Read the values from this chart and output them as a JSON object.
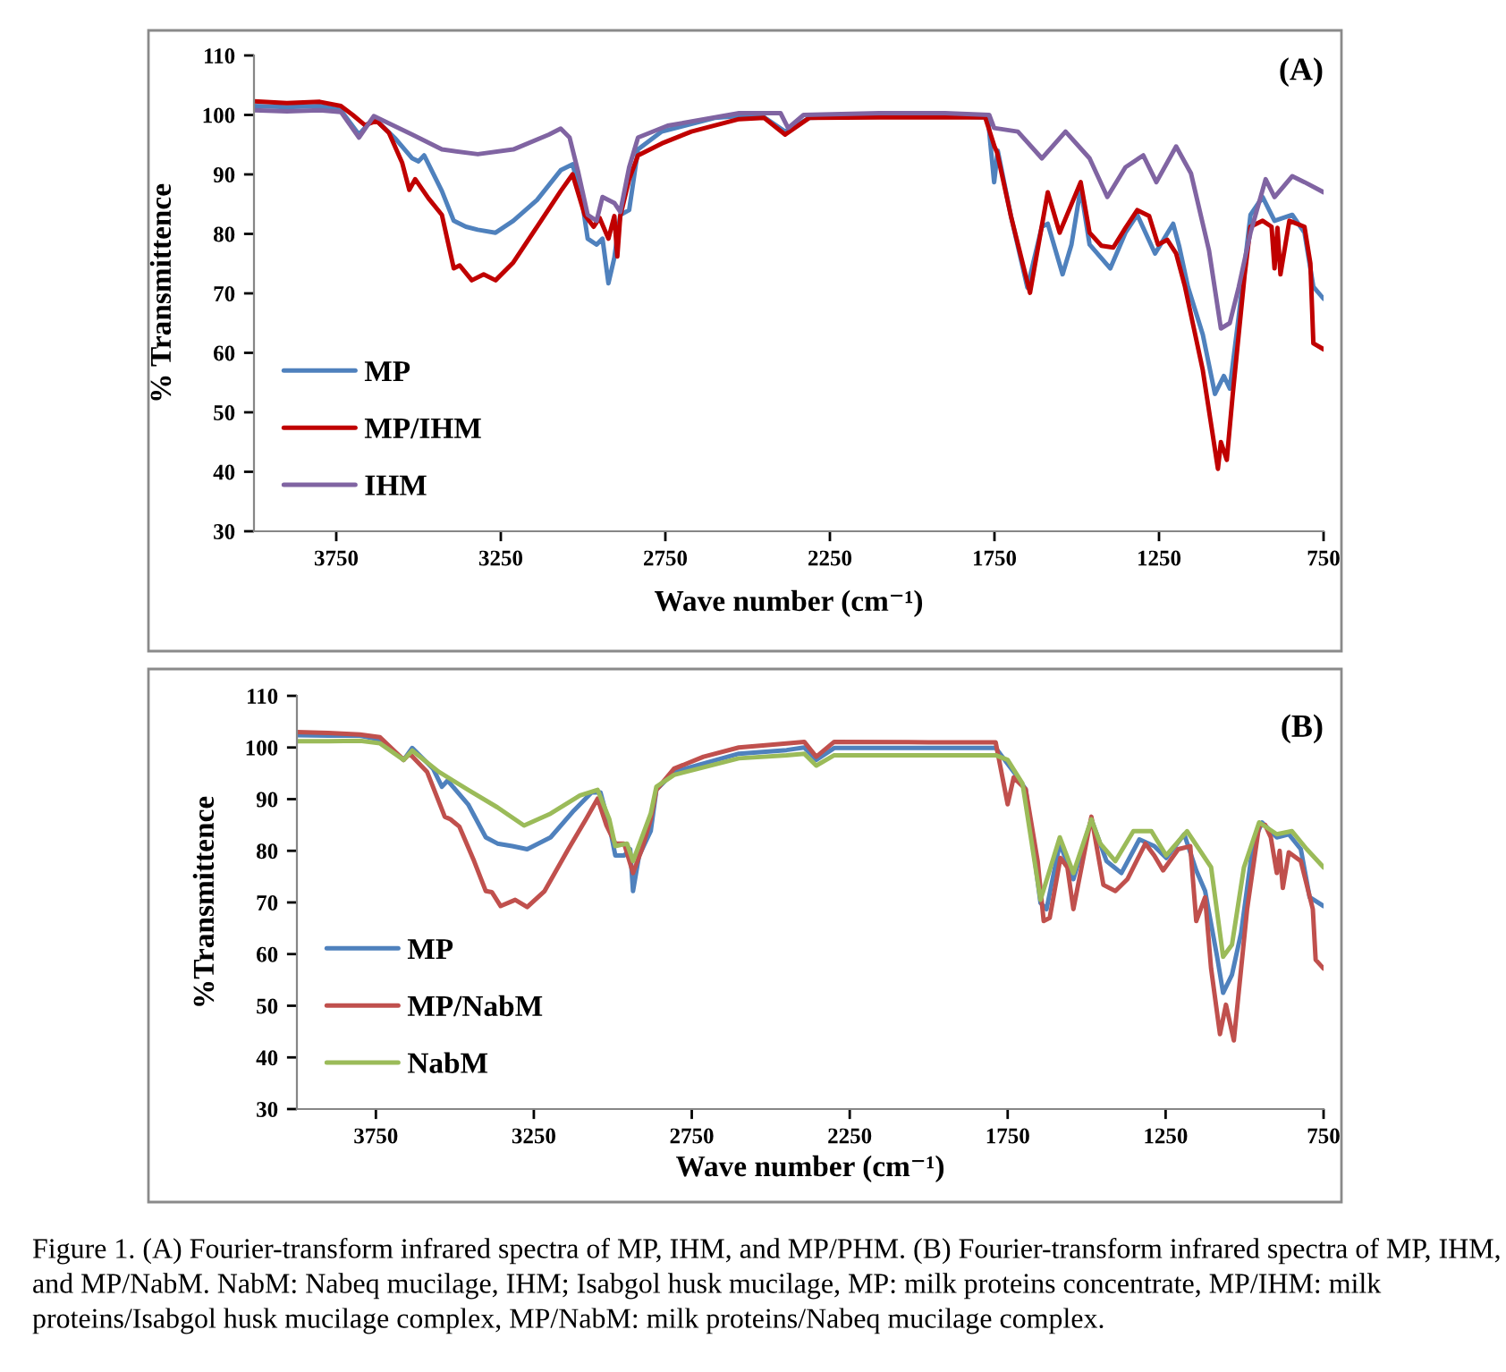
{
  "chart_data": [
    {
      "type": "line",
      "title": "(A)",
      "xlabel": "Wave number (cm⁻¹)",
      "ylabel": "% Transmittence",
      "xlim": [
        4000,
        750
      ],
      "ylim": [
        30,
        110
      ],
      "xticks": [
        3750,
        3250,
        2750,
        2250,
        1750,
        1250,
        750
      ],
      "yticks": [
        30,
        40,
        50,
        60,
        70,
        80,
        90,
        100,
        110
      ],
      "legend": "lower left",
      "series": [
        {
          "name": "MP",
          "color": "#4f81bd",
          "x": [
            4000,
            3900,
            3800,
            3736,
            3681,
            3636,
            3570,
            3519,
            3500,
            3483,
            3429,
            3393,
            3356,
            3320,
            3266,
            3212,
            3140,
            3068,
            3032,
            3005,
            2986,
            2959,
            2941,
            2923,
            2905,
            2887,
            2860,
            2833,
            2761,
            2600,
            2526,
            2450,
            2386,
            2313,
            2100,
            1900,
            1770,
            1751,
            1740,
            1700,
            1650,
            1606,
            1588,
            1543,
            1516,
            1488,
            1461,
            1398,
            1352,
            1316,
            1262,
            1207,
            1189,
            1162,
            1117,
            1080,
            1053,
            1035,
            1008,
            972,
            935,
            899,
            845,
            808,
            781,
            750
          ],
          "values": [
            101.5,
            101.3,
            101.5,
            100.8,
            96.7,
            99.5,
            96.0,
            92.7,
            92.2,
            93.2,
            87.2,
            82.2,
            81.2,
            80.7,
            80.2,
            82.2,
            85.7,
            90.7,
            91.7,
            86.2,
            79.2,
            78.2,
            79.2,
            71.7,
            76.0,
            83.2,
            84.0,
            94.2,
            97.2,
            99.5,
            99.8,
            99.6,
            97.2,
            99.5,
            99.8,
            99.8,
            99.6,
            88.7,
            94.0,
            83.0,
            71.0,
            81.2,
            81.7,
            73.2,
            78.2,
            87.7,
            78.2,
            74.2,
            80.2,
            83.2,
            76.7,
            81.7,
            78.0,
            71.1,
            63.1,
            53.1,
            56.1,
            54.0,
            66.0,
            83.2,
            86.2,
            82.2,
            83.2,
            80.2,
            71.1,
            69.1
          ]
        },
        {
          "name": "MP/IHM",
          "color": "#c00000",
          "x": [
            4000,
            3900,
            3800,
            3736,
            3700,
            3663,
            3627,
            3590,
            3550,
            3528,
            3510,
            3470,
            3429,
            3393,
            3375,
            3338,
            3302,
            3266,
            3212,
            3140,
            3068,
            3032,
            2995,
            2968,
            2950,
            2923,
            2905,
            2896,
            2887,
            2860,
            2833,
            2761,
            2671,
            2526,
            2450,
            2386,
            2313,
            2100,
            1900,
            1778,
            1750,
            1742,
            1700,
            1642,
            1588,
            1552,
            1488,
            1461,
            1425,
            1389,
            1352,
            1316,
            1280,
            1253,
            1225,
            1198,
            1171,
            1144,
            1117,
            1089,
            1071,
            1062,
            1044,
            1026,
            1008,
            990,
            972,
            935,
            908,
            899,
            890,
            881,
            854,
            808,
            790,
            781,
            750
          ],
          "values": [
            102.3,
            102.0,
            102.2,
            101.5,
            100.0,
            98.3,
            99.0,
            97.0,
            92.0,
            87.4,
            89.2,
            86.0,
            83.2,
            74.2,
            74.7,
            72.2,
            73.2,
            72.2,
            75.2,
            81.2,
            87.2,
            90.0,
            83.2,
            81.2,
            82.7,
            79.2,
            83.0,
            76.2,
            83.0,
            89.2,
            93.2,
            95.2,
            97.2,
            99.3,
            99.5,
            96.7,
            99.5,
            99.6,
            99.6,
            99.6,
            94.7,
            93.7,
            83.0,
            70.1,
            87.0,
            80.2,
            88.7,
            80.2,
            78.0,
            77.7,
            81.0,
            84.0,
            83.0,
            78.2,
            79.0,
            76.7,
            71.1,
            64.1,
            57.1,
            47.0,
            40.5,
            45.0,
            42.0,
            53.0,
            63.0,
            73.0,
            81.2,
            82.2,
            81.2,
            74.2,
            81.0,
            73.2,
            82.2,
            81.2,
            75.0,
            61.6,
            60.6
          ]
        },
        {
          "name": "IHM",
          "color": "#8064a2",
          "x": [
            4000,
            3900,
            3800,
            3736,
            3681,
            3636,
            3519,
            3429,
            3320,
            3212,
            3104,
            3068,
            3041,
            3014,
            2986,
            2959,
            2941,
            2905,
            2887,
            2860,
            2833,
            2743,
            2526,
            2400,
            2377,
            2330,
            2100,
            1900,
            1766,
            1751,
            1679,
            1606,
            1534,
            1461,
            1407,
            1352,
            1298,
            1258,
            1198,
            1153,
            1098,
            1062,
            1035,
            1008,
            972,
            926,
            899,
            845,
            808,
            750
          ],
          "values": [
            100.8,
            100.6,
            100.8,
            100.5,
            96.2,
            99.8,
            96.7,
            94.2,
            93.4,
            94.2,
            96.7,
            97.7,
            96.2,
            90.2,
            83.2,
            82.2,
            86.2,
            85.2,
            83.7,
            91.2,
            96.2,
            98.2,
            100.3,
            100.3,
            97.8,
            100.0,
            100.3,
            100.3,
            100.0,
            97.8,
            97.2,
            92.7,
            97.2,
            92.7,
            86.2,
            91.2,
            93.2,
            88.7,
            94.7,
            90.2,
            77.2,
            64.1,
            65.0,
            71.0,
            80.2,
            89.2,
            86.2,
            89.7,
            88.7,
            87.0
          ]
        }
      ]
    },
    {
      "type": "line",
      "title": "(B)",
      "xlabel": "Wave number (cm⁻¹)",
      "ylabel": "%Transmittence",
      "xlim": [
        4000,
        750
      ],
      "ylim": [
        30,
        110
      ],
      "xticks": [
        3750,
        3250,
        2750,
        2250,
        1750,
        1250,
        750
      ],
      "yticks": [
        30,
        40,
        50,
        60,
        70,
        80,
        90,
        100,
        110
      ],
      "legend": "lower left",
      "annotations": [
        "Figure 1. (A) Fourier-transform infrared spectra of MP, IHM, and MP/PHM. (B) Fourier-transform infrared spectra of MP, IHM, and MP/NabM. NabM: Nabeq mucilage, IHM; Isabgol husk mucilage, MP: milk proteins concentrate, MP/IHM: milk proteins/Isabgol husk mucilage complex, MP/NabM: milk proteins/Nabeq mucilage complex."
      ],
      "series": [
        {
          "name": "MP",
          "color": "#4f81bd",
          "x": [
            4000,
            3900,
            3800,
            3737,
            3662,
            3635,
            3569,
            3541,
            3523,
            3458,
            3402,
            3365,
            3318,
            3271,
            3197,
            3123,
            3067,
            3039,
            3011,
            2992,
            2964,
            2945,
            2936,
            2917,
            2880,
            2862,
            2806,
            2601,
            2450,
            2394,
            2356,
            2299,
            2000,
            1788,
            1731,
            1693,
            1646,
            1627,
            1585,
            1542,
            1485,
            1437,
            1390,
            1333,
            1286,
            1248,
            1191,
            1153,
            1125,
            1087,
            1068,
            1040,
            1011,
            973,
            945,
            898,
            860,
            822,
            794,
            750
          ],
          "values": [
            102.4,
            102.3,
            102.3,
            101.5,
            97.6,
            99.9,
            95.9,
            92.4,
            93.6,
            89.0,
            82.6,
            81.4,
            80.9,
            80.3,
            82.6,
            87.8,
            91.3,
            91.3,
            84.9,
            79.1,
            79.1,
            80.3,
            72.2,
            79.0,
            83.8,
            91.8,
            95.3,
            98.8,
            99.5,
            100.0,
            97.6,
            99.9,
            99.9,
            99.9,
            95.3,
            91.9,
            69.9,
            68.7,
            81.4,
            74.5,
            86.1,
            78.0,
            75.7,
            82.2,
            80.9,
            78.6,
            83.2,
            76.2,
            72.2,
            59.5,
            52.5,
            56.0,
            64.1,
            81.4,
            85.5,
            82.6,
            83.2,
            80.3,
            71.0,
            69.3
          ]
        },
        {
          "name": "MP/NabM",
          "color": "#c0504d",
          "x": [
            4000,
            3900,
            3800,
            3737,
            3662,
            3643,
            3588,
            3532,
            3514,
            3486,
            3439,
            3402,
            3383,
            3355,
            3309,
            3271,
            3216,
            3141,
            3085,
            3048,
            3020,
            2992,
            2964,
            2936,
            2908,
            2880,
            2862,
            2806,
            2713,
            2601,
            2500,
            2394,
            2356,
            2299,
            2000,
            1788,
            1750,
            1731,
            1693,
            1655,
            1636,
            1617,
            1583,
            1561,
            1542,
            1485,
            1447,
            1409,
            1371,
            1314,
            1286,
            1258,
            1210,
            1172,
            1153,
            1125,
            1106,
            1078,
            1059,
            1034,
            1011,
            992,
            954,
            935,
            917,
            898,
            889,
            879,
            860,
            822,
            784,
            775,
            750
          ],
          "values": [
            103.0,
            102.8,
            102.5,
            102.0,
            97.6,
            98.8,
            95.3,
            86.6,
            86.1,
            84.7,
            78.0,
            72.2,
            72.0,
            69.3,
            70.5,
            69.1,
            72.2,
            80.3,
            86.1,
            90.1,
            84.9,
            81.4,
            81.4,
            75.7,
            80.3,
            86.1,
            91.8,
            95.9,
            98.2,
            100.0,
            100.5,
            101.1,
            98.2,
            101.1,
            101.0,
            101.0,
            89.0,
            94.2,
            91.9,
            78.0,
            66.4,
            67.0,
            78.6,
            76.8,
            68.7,
            86.6,
            73.4,
            72.2,
            74.5,
            81.4,
            79.1,
            76.2,
            80.3,
            80.9,
            66.4,
            71.0,
            57.2,
            44.5,
            50.2,
            43.3,
            57.2,
            68.7,
            84.9,
            85.0,
            82.6,
            75.7,
            80.0,
            72.8,
            79.7,
            78.0,
            68.7,
            58.9,
            57.2
          ]
        },
        {
          "name": "NabM",
          "color": "#9bbb59",
          "x": [
            4000,
            3900,
            3800,
            3737,
            3662,
            3635,
            3551,
            3458,
            3365,
            3281,
            3197,
            3104,
            3048,
            3011,
            2992,
            2955,
            2936,
            2880,
            2862,
            2806,
            2601,
            2450,
            2394,
            2356,
            2299,
            2000,
            1788,
            1750,
            1703,
            1646,
            1585,
            1542,
            1485,
            1457,
            1409,
            1352,
            1295,
            1248,
            1182,
            1106,
            1068,
            1040,
            1002,
            954,
            898,
            850,
            803,
            750
          ],
          "values": [
            101.2,
            101.2,
            101.3,
            100.8,
            97.6,
            99.4,
            95.3,
            91.8,
            88.4,
            84.9,
            87.2,
            90.7,
            91.8,
            86.1,
            80.9,
            81.4,
            78.0,
            87.2,
            92.4,
            94.7,
            97.9,
            98.5,
            98.8,
            96.5,
            98.5,
            98.5,
            98.5,
            97.6,
            93.0,
            70.5,
            82.6,
            75.7,
            86.1,
            81.4,
            78.0,
            83.8,
            83.8,
            79.1,
            83.8,
            76.8,
            59.5,
            61.8,
            76.8,
            85.5,
            83.2,
            83.8,
            80.3,
            76.8
          ]
        }
      ]
    }
  ]
}
